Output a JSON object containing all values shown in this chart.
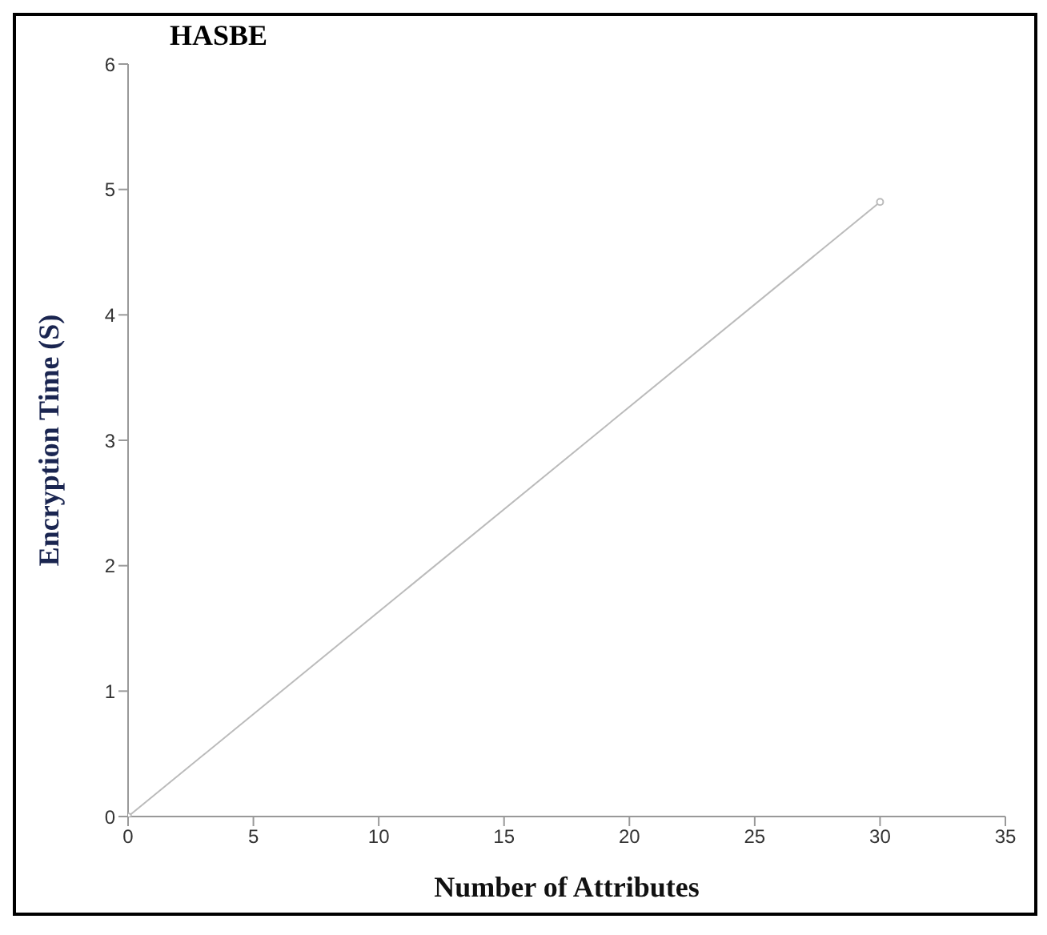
{
  "chart_data": {
    "type": "line",
    "title": "HASBE",
    "xlabel": "Number of Attributes",
    "ylabel": "Encryption Time (S)",
    "x": [
      0,
      30
    ],
    "series": [
      {
        "color": "#bbbbbb",
        "values": [
          0,
          4.9
        ]
      }
    ],
    "xlim": [
      0,
      35
    ],
    "xticks": [
      0,
      5,
      10,
      15,
      20,
      25,
      30,
      35
    ],
    "ylim": [
      0,
      6
    ],
    "yticks": [
      0,
      1,
      2,
      3,
      4,
      5,
      6
    ],
    "marker": "circle",
    "grid": false,
    "legend": false
  }
}
